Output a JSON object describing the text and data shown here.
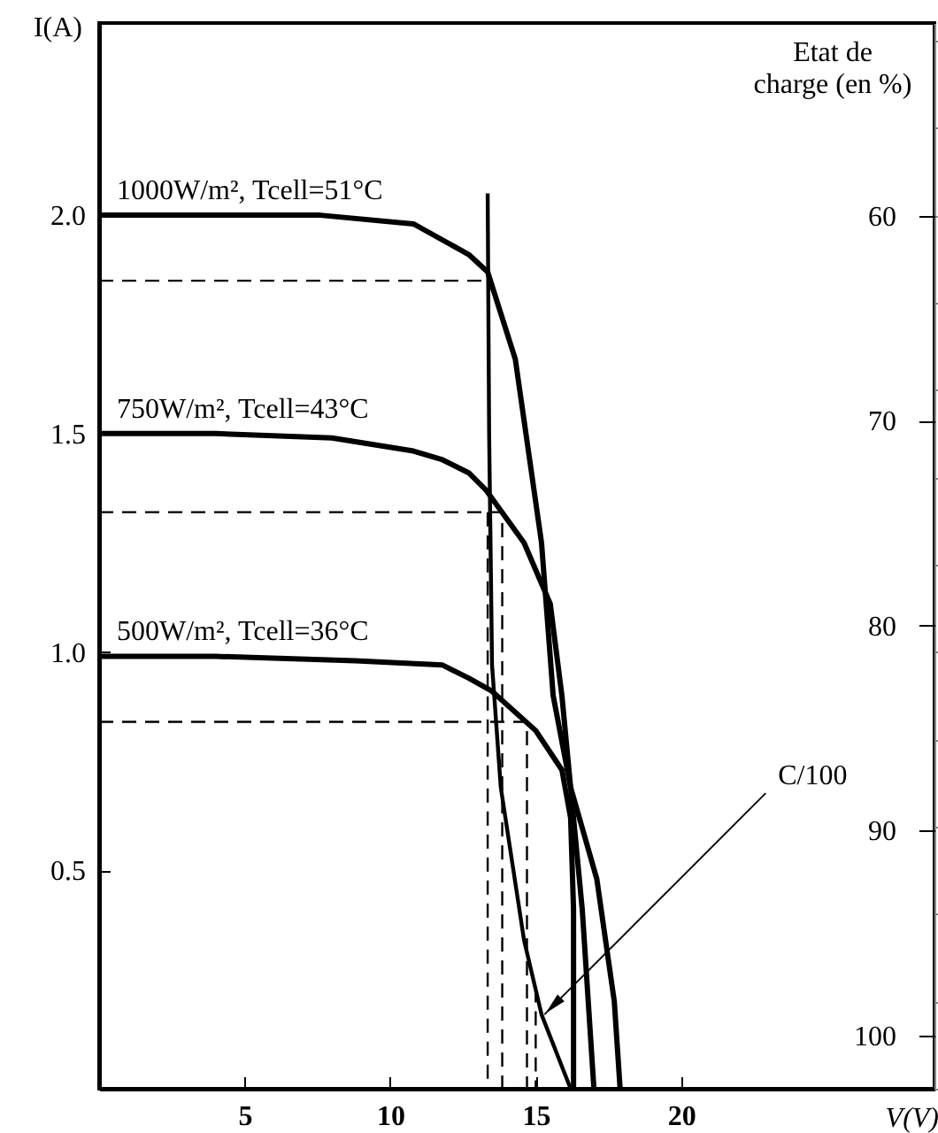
{
  "chart_data": {
    "type": "line",
    "xlabel": "V(V)",
    "ylabel": "I(A)",
    "y2label": "Etat de charge (en %)",
    "xlim": [
      0,
      28.7
    ],
    "xticks": [
      5,
      10,
      15,
      20
    ],
    "ylim": [
      0,
      2.44
    ],
    "yticks": [
      {
        "value": 0.5,
        "label": "0.5"
      },
      {
        "value": 1,
        "label": "1.0"
      },
      {
        "value": 1.5,
        "label": "1.5"
      },
      {
        "value": 2,
        "label": "2.0"
      }
    ],
    "y2lim": [
      102.6,
      50.6
    ],
    "y2ticks": [
      60,
      70,
      80,
      90,
      100
    ],
    "grid": false,
    "series": [
      {
        "name": "1000W/m², Tcell=51°C",
        "color": "#000000",
        "x": [
          0,
          4,
          7.6,
          10.8,
          12.7,
          13.35,
          14.3,
          15.2,
          15.6,
          16.2,
          17.1,
          17.7,
          17.9
        ],
        "values": [
          2.0,
          2.0,
          2.0,
          1.98,
          1.91,
          1.87,
          1.67,
          1.25,
          0.9,
          0.69,
          0.48,
          0.2,
          0
        ]
      },
      {
        "name": "750W/m², Tcell=43°C",
        "color": "#000000",
        "x": [
          0,
          4,
          8,
          10.8,
          11.8,
          12.7,
          13.3,
          14.6,
          15.5,
          15.9,
          16.2,
          16.6,
          17.0
        ],
        "values": [
          1.5,
          1.5,
          1.49,
          1.46,
          1.44,
          1.41,
          1.37,
          1.25,
          1.11,
          0.9,
          0.69,
          0.41,
          0
        ]
      },
      {
        "name": "500W/m², Tcell=36°C",
        "color": "#000000",
        "x": [
          0,
          4,
          8.8,
          11.8,
          12.7,
          13.5,
          15.0,
          15.9,
          16.2,
          16.3,
          16.3
        ],
        "values": [
          0.99,
          0.99,
          0.98,
          0.97,
          0.94,
          0.91,
          0.82,
          0.73,
          0.62,
          0.41,
          0
        ]
      },
      {
        "color": "#000000",
        "x": [
          13.35,
          13.4,
          13.5,
          13.8,
          14.6,
          15.2,
          16.2
        ],
        "values": [
          2.05,
          1.5,
          0.97,
          0.69,
          0.34,
          0.17,
          0
        ]
      },
      {
        "color": "#000000",
        "line_style": "dashed",
        "x": [
          0,
          13.35
        ],
        "values": [
          1.85,
          1.85
        ]
      },
      {
        "color": "#000000",
        "line_style": "dashed",
        "x": [
          0,
          13.85,
          13.85
        ],
        "values": [
          1.32,
          1.32,
          0
        ]
      },
      {
        "color": "#000000",
        "line_style": "dashed",
        "x": [
          0,
          14.7,
          14.7
        ],
        "values": [
          0.84,
          0.84,
          0
        ]
      },
      {
        "color": "#000000",
        "line_style": "dashed",
        "x": [
          13.35,
          13.35
        ],
        "values": [
          1.32,
          0
        ]
      },
      {
        "color": "#000000",
        "line_style": "dashed",
        "x": [
          15.0,
          15.0
        ],
        "values": [
          0.23,
          0
        ]
      }
    ],
    "annotations": [
      {
        "text": "C/100",
        "x": 15.3,
        "y": 0.17
      }
    ]
  }
}
